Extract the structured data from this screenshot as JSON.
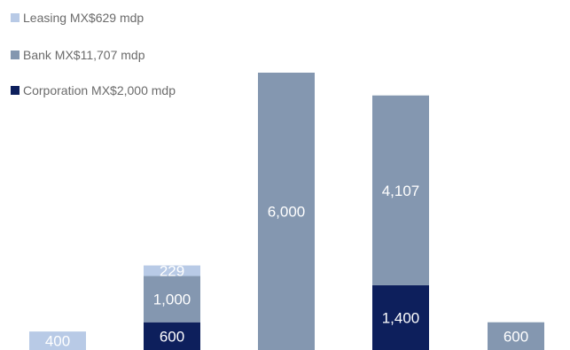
{
  "chart_data": {
    "type": "bar",
    "stacked": true,
    "title": "",
    "xlabel": "",
    "ylabel": "",
    "categories": [
      "",
      "",
      "",
      "",
      ""
    ],
    "legend_position": "top-left",
    "grid": false,
    "ylim": [
      0,
      6000
    ],
    "series": [
      {
        "key": "leasing",
        "name": "Leasing MX$629 mdp",
        "color": "#b8cae6",
        "values": [
          400,
          229,
          0,
          0,
          0
        ],
        "labels": [
          "400",
          "229",
          "",
          "",
          ""
        ]
      },
      {
        "key": "bank",
        "name": "Bank MX$11,707 mdp",
        "color": "#8497b0",
        "values": [
          0,
          1000,
          6000,
          4107,
          600
        ],
        "labels": [
          "",
          "1,000",
          "6,000",
          "4,107",
          "600"
        ]
      },
      {
        "key": "corporation",
        "name": "Corporation MX$2,000 mdp",
        "color": "#0d1f5c",
        "values": [
          0,
          600,
          0,
          1400,
          0
        ],
        "labels": [
          "",
          "600",
          "",
          "1,400",
          ""
        ]
      }
    ]
  }
}
